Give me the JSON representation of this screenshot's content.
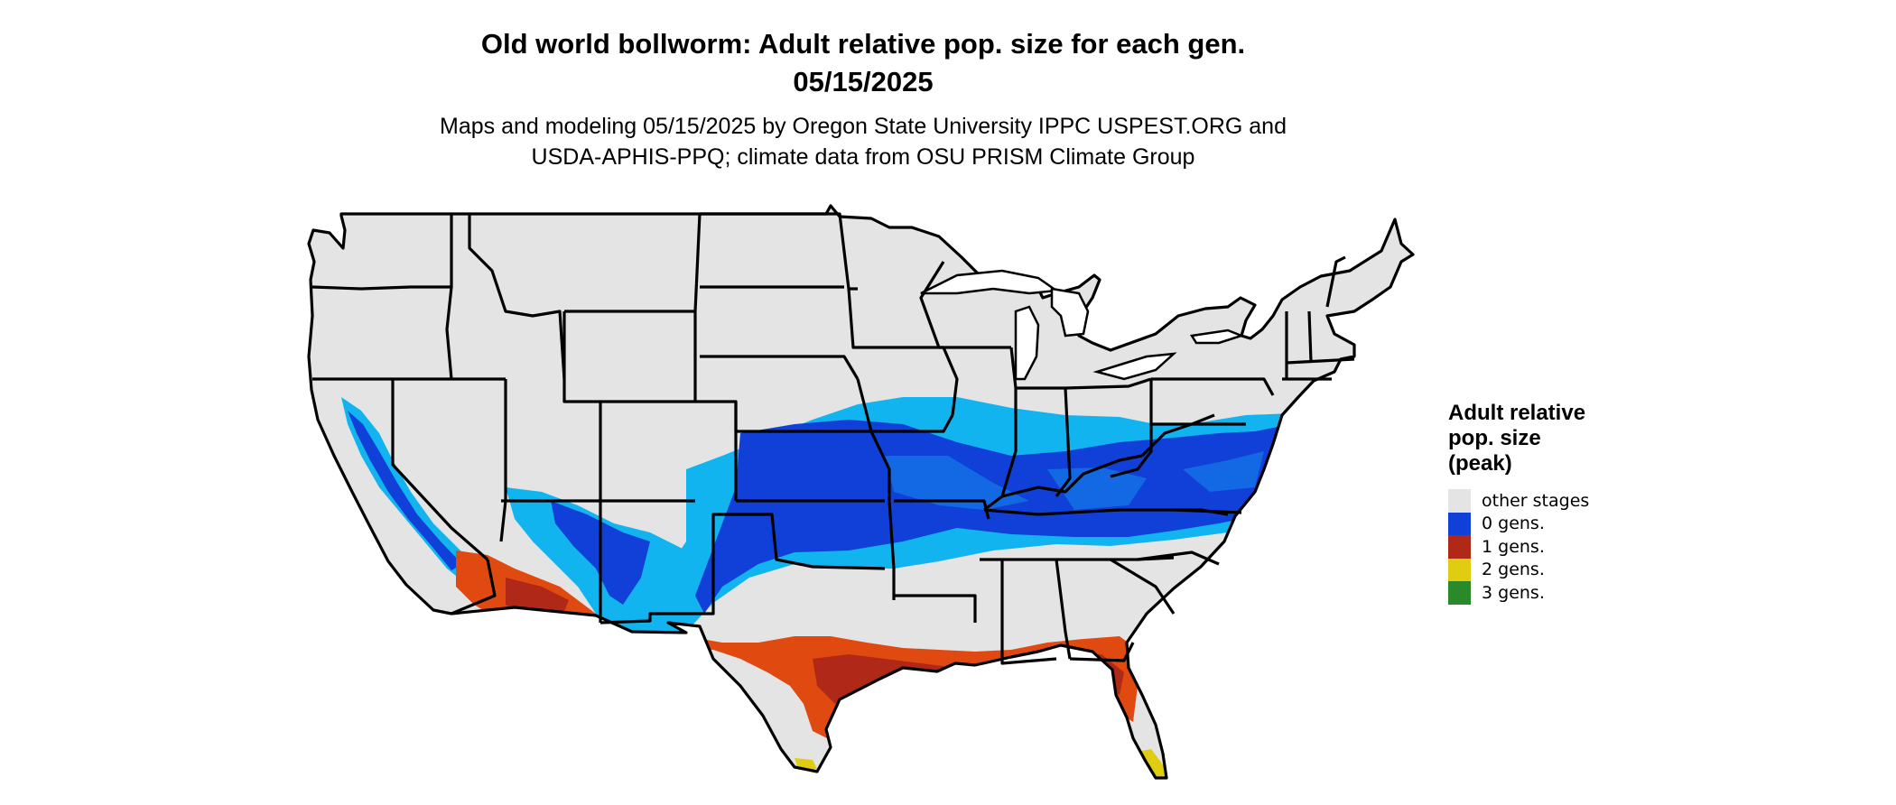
{
  "header": {
    "title_line1": "Old world bollworm: Adult relative pop. size for each gen.",
    "title_line2": "05/15/2025",
    "subtitle_line1": "Maps and modeling 05/15/2025 by Oregon State University IPPC USPEST.ORG and",
    "subtitle_line2": "USDA-APHIS-PPQ; climate data from OSU PRISM Climate Group"
  },
  "legend": {
    "title_line1": "Adult relative",
    "title_line2": "pop. size",
    "title_line3": "(peak)",
    "items": [
      {
        "label": "other stages",
        "color": "#e4e4e4"
      },
      {
        "label": "0 gens.",
        "color": "#1040d8"
      },
      {
        "label": "1 gens.",
        "color": "#b02818"
      },
      {
        "label": "2 gens.",
        "color": "#e0cc10"
      },
      {
        "label": "3 gens.",
        "color": "#2a8a2a"
      }
    ]
  },
  "map_colors": {
    "land": "#e4e4e4",
    "border": "#000000",
    "light_blue": "#12b4f0",
    "mid_blue": "#1470e6",
    "dark_blue": "#1040d8",
    "red": "#b02818",
    "orange_red": "#e04a10",
    "yellow": "#e0cc10"
  }
}
